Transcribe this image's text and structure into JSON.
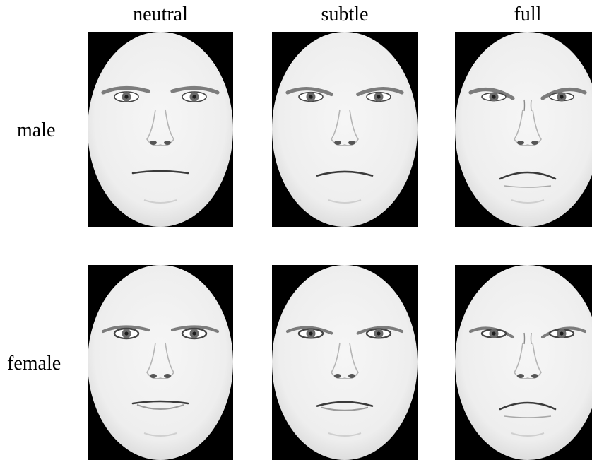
{
  "columns": [
    "neutral",
    "subtle",
    "full"
  ],
  "rows": [
    "male",
    "female"
  ],
  "faces": [
    {
      "row": "male",
      "column": "neutral",
      "gender": "male",
      "intensity": 0.0
    },
    {
      "row": "male",
      "column": "subtle",
      "gender": "male",
      "intensity": 0.45
    },
    {
      "row": "male",
      "column": "full",
      "gender": "male",
      "intensity": 1.0
    },
    {
      "row": "female",
      "column": "neutral",
      "gender": "female",
      "intensity": 0.0
    },
    {
      "row": "female",
      "column": "subtle",
      "gender": "female",
      "intensity": 0.45
    },
    {
      "row": "female",
      "column": "full",
      "gender": "female",
      "intensity": 1.0
    }
  ],
  "colors": {
    "background": "#ffffff",
    "mask": "#000000",
    "skin": "#eeeeee",
    "skin_shade": "#d6d6d6",
    "feature": "#3a3a3a"
  }
}
